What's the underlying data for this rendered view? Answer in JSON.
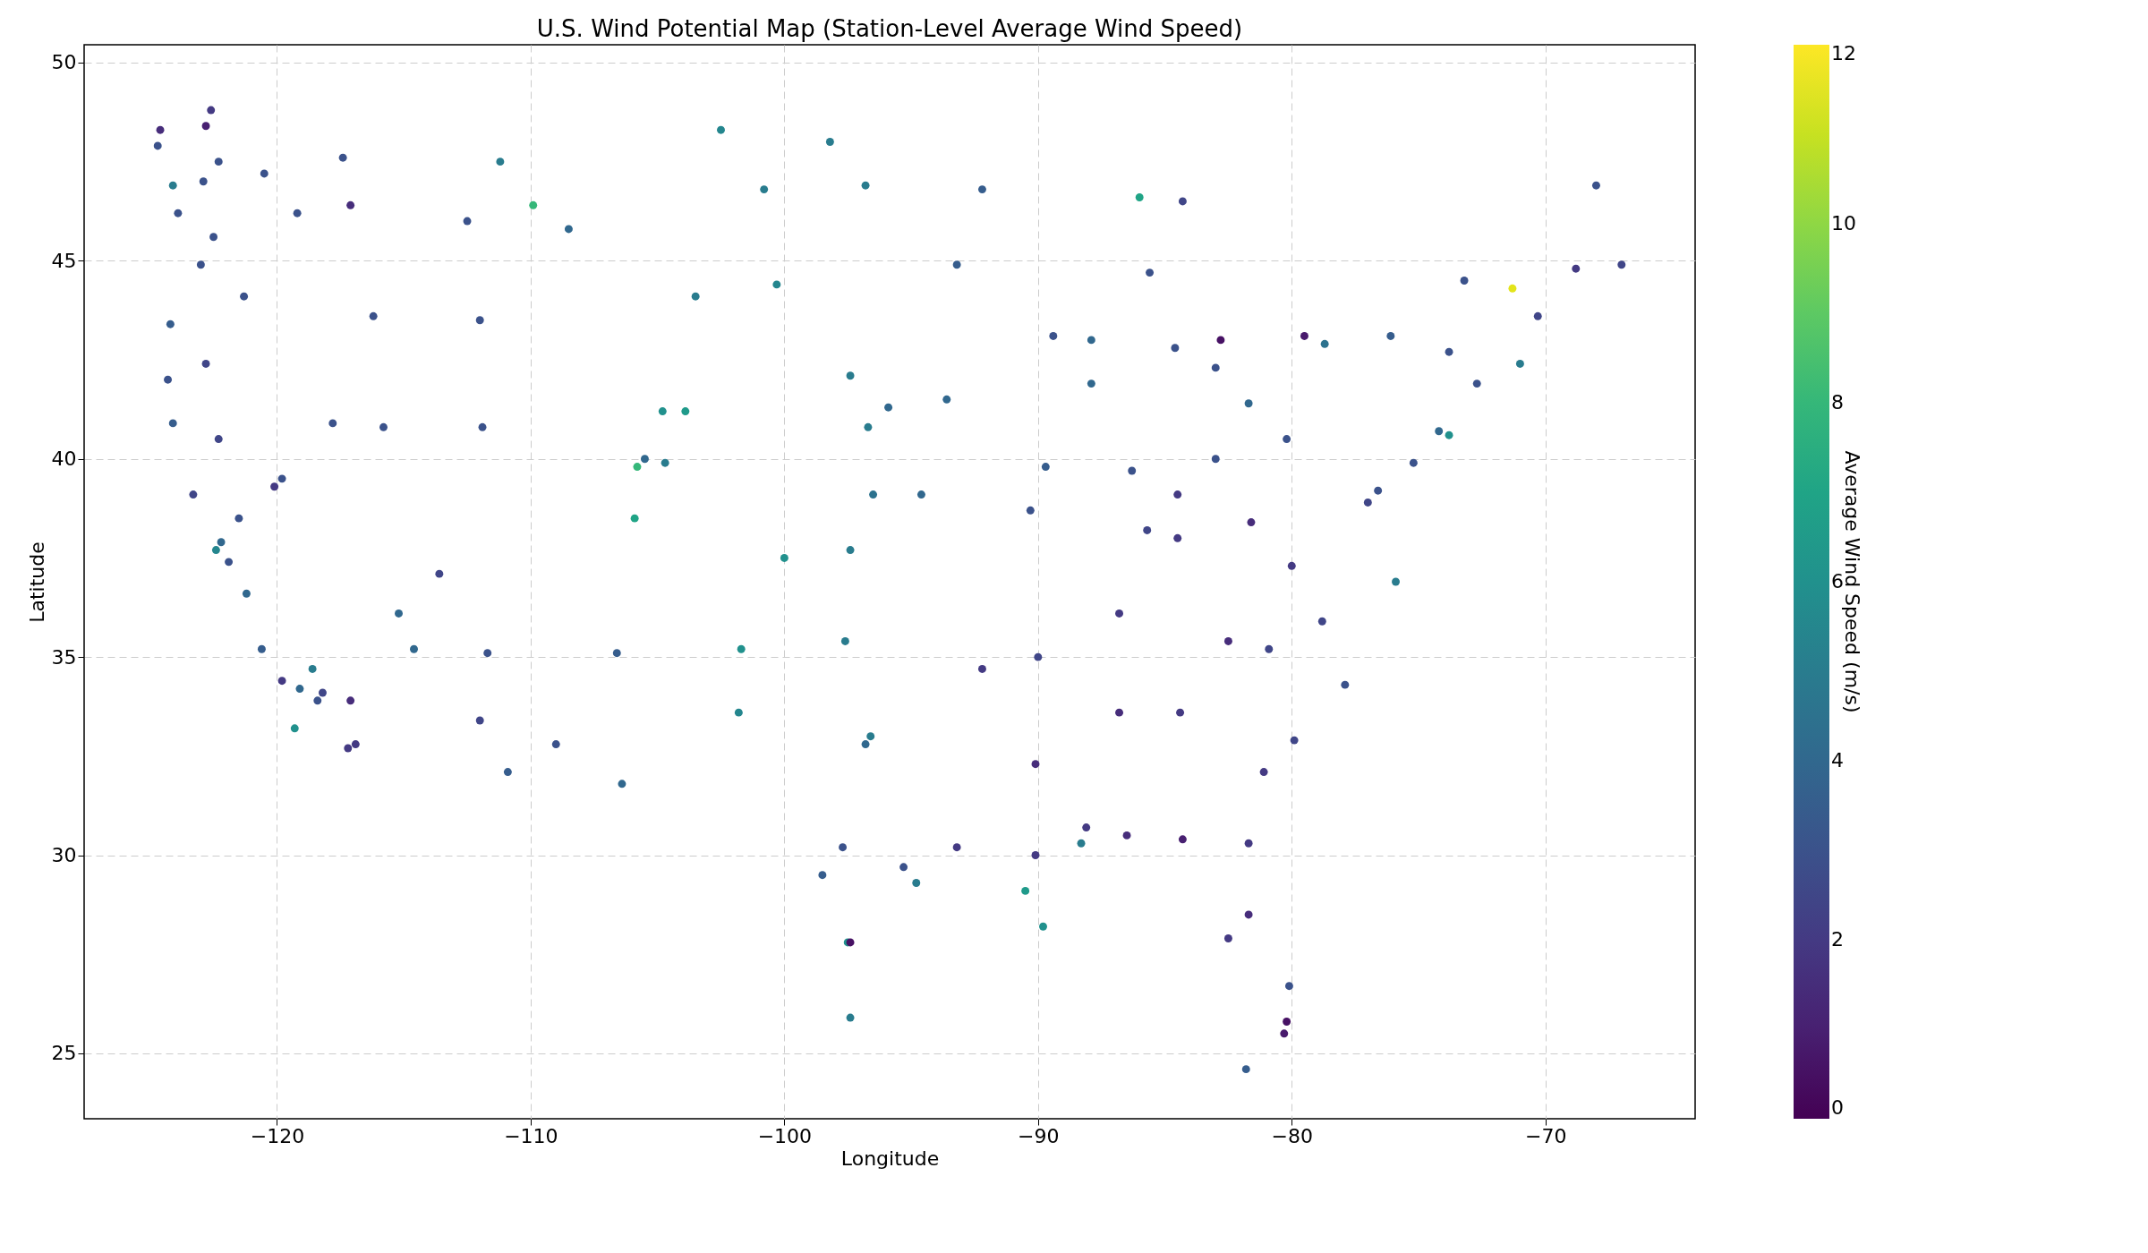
{
  "chart_data": {
    "type": "scatter",
    "title": "U.S. Wind Potential Map (Station-Level Average Wind Speed)",
    "xlabel": "Longitude",
    "ylabel": "Latitude",
    "clabel": "Average Wind Speed (m/s)",
    "marker": "circle",
    "grid": true,
    "xlim": [
      -127.6,
      -64.1
    ],
    "ylim": [
      23.35,
      50.45
    ],
    "xticks": [
      {
        "value": -120,
        "label": "−120"
      },
      {
        "value": -110,
        "label": "−110"
      },
      {
        "value": -100,
        "label": "−100"
      },
      {
        "value": -90,
        "label": "−90"
      },
      {
        "value": -80,
        "label": "−80"
      },
      {
        "value": -70,
        "label": "−70"
      }
    ],
    "yticks": [
      25,
      30,
      35,
      40,
      45,
      50
    ],
    "clim": [
      0,
      12
    ],
    "cticks": [
      0,
      2,
      4,
      6,
      8,
      10,
      12
    ],
    "x": [
      -124.6,
      -124.7,
      -124.1,
      -123.9,
      -124.2,
      -124.3,
      -124.1,
      -123.3,
      -122.4,
      -122.2,
      -121.9,
      -121.2,
      -120.6,
      -119.8,
      -118.4,
      -117.2,
      -117.1,
      -118.2,
      -119.1,
      -122.3,
      -122.6,
      -122.9,
      -122.5,
      -123.0,
      -122.8,
      -121.3,
      -122.3,
      -121.5,
      -120.1,
      -119.2,
      -117.4,
      -119.8,
      -117.8,
      -115.8,
      -115.2,
      -114.6,
      -116.2,
      -112.0,
      -111.9,
      -112.0,
      -110.9,
      -111.7,
      -113.6,
      -108.5,
      -111.2,
      -112.5,
      -109.9,
      -106.6,
      -104.7,
      -104.8,
      -105.5,
      -106.4,
      -103.5,
      -101.7,
      -101.8,
      -100.0,
      -100.8,
      -98.2,
      -96.8,
      -97.4,
      -95.9,
      -97.4,
      -97.6,
      -96.8,
      -97.7,
      -98.5,
      -95.3,
      -97.5,
      -97.4,
      -94.8,
      -93.2,
      -90.1,
      -88.1,
      -86.5,
      -84.3,
      -82.5,
      -81.7,
      -80.2,
      -80.3,
      -81.8,
      -80.1,
      -81.7,
      -84.4,
      -86.8,
      -90.1,
      -92.2,
      -90.0,
      -86.8,
      -84.5,
      -85.7,
      -89.7,
      -87.9,
      -86.3,
      -83.0,
      -84.5,
      -81.7,
      -83.0,
      -84.6,
      -85.6,
      -87.9,
      -89.4,
      -93.2,
      -92.2,
      -90.3,
      -94.6,
      -93.6,
      -96.7,
      -86.0,
      -84.3,
      -80.2,
      -77.0,
      -76.6,
      -75.2,
      -74.2,
      -73.8,
      -72.7,
      -71.0,
      -70.3,
      -68.8,
      -68.0,
      -67.0,
      -71.3,
      -73.2,
      -73.8,
      -76.1,
      -78.7,
      -75.9,
      -77.9,
      -79.9,
      -81.1,
      -80.9,
      -78.8,
      -80.0,
      -82.5,
      -81.6,
      -79.5,
      -82.8,
      -88.3,
      -89.8,
      -90.5,
      -105.9,
      -105.8,
      -103.9,
      -102.5,
      -100.3,
      -96.6,
      -96.5,
      -120.5,
      -118.6,
      -119.3,
      -116.9,
      -109.0,
      -117.1,
      -122.8,
      -97.4
    ],
    "values": [
      48.3,
      47.9,
      46.9,
      46.2,
      43.4,
      42.0,
      40.9,
      39.1,
      37.7,
      37.9,
      37.4,
      36.6,
      35.2,
      34.4,
      33.9,
      32.7,
      33.9,
      34.1,
      34.2,
      47.5,
      48.8,
      47.0,
      45.6,
      44.9,
      42.4,
      44.1,
      40.5,
      38.5,
      39.3,
      46.2,
      47.6,
      39.5,
      40.9,
      40.8,
      36.1,
      35.2,
      43.6,
      43.5,
      40.8,
      33.4,
      32.1,
      35.1,
      37.1,
      45.8,
      47.5,
      46.0,
      46.4,
      35.1,
      39.9,
      41.2,
      40.0,
      31.8,
      44.1,
      35.2,
      33.6,
      37.5,
      46.8,
      48.0,
      46.9,
      42.1,
      41.3,
      37.7,
      35.4,
      32.8,
      30.2,
      29.5,
      29.7,
      27.8,
      25.9,
      29.3,
      30.2,
      30.0,
      30.7,
      30.5,
      30.4,
      27.9,
      28.5,
      25.8,
      25.5,
      24.6,
      26.7,
      30.3,
      33.6,
      33.6,
      32.3,
      34.7,
      35.0,
      36.1,
      38.0,
      38.2,
      39.8,
      41.9,
      39.7,
      40.0,
      39.1,
      41.4,
      42.3,
      42.8,
      44.7,
      43.0,
      43.1,
      44.9,
      46.8,
      38.7,
      39.1,
      41.5,
      40.8,
      46.6,
      46.5,
      40.5,
      38.9,
      39.2,
      39.9,
      40.7,
      40.6,
      41.9,
      42.4,
      43.6,
      44.8,
      46.9,
      44.9,
      44.3,
      44.5,
      42.7,
      43.1,
      42.9,
      36.9,
      34.3,
      32.9,
      32.1,
      35.2,
      35.9,
      37.3,
      35.4,
      38.4,
      43.1,
      43.0,
      30.3,
      28.2,
      29.1,
      38.5,
      39.8,
      41.2,
      48.3,
      44.4,
      33.0,
      39.1,
      47.2,
      34.7,
      33.2,
      32.8,
      32.8,
      46.4,
      48.4,
      27.8
    ],
    "cvalues": [
      1.5,
      3,
      5,
      3,
      3.5,
      3,
      3.5,
      2.5,
      5.5,
      4,
      3,
      4,
      3.5,
      2,
      3,
      2,
      1.5,
      2.5,
      4,
      3,
      2,
      3,
      3,
      3,
      2.5,
      3,
      2.5,
      3,
      2,
      3,
      3,
      3,
      3,
      3,
      4,
      4,
      3,
      3,
      3,
      2.5,
      3.5,
      3,
      2.5,
      4,
      5,
      3,
      8,
      3.5,
      5,
      6,
      4,
      4,
      5,
      6,
      5.5,
      6,
      5,
      5,
      5,
      5,
      4,
      5,
      5,
      4,
      3,
      3.5,
      3,
      6,
      5,
      5,
      2,
      2,
      2,
      1.5,
      1,
      2,
      1.5,
      0.5,
      0.8,
      3.5,
      3,
      2,
      2,
      1.5,
      1.5,
      2,
      2.5,
      2,
      2,
      2.5,
      3.5,
      4,
      3,
      3,
      2,
      4,
      3,
      3,
      3,
      4,
      3,
      3.5,
      3.5,
      3,
      4,
      4,
      5,
      7,
      2.5,
      3,
      2.5,
      3,
      3,
      4,
      6,
      3,
      5,
      2.5,
      2,
      3,
      2.5,
      11.5,
      3,
      3,
      3.5,
      4.5,
      5,
      3,
      2.5,
      2,
      2.5,
      2.5,
      2,
      1.5,
      1.5,
      0.8,
      0.5,
      5,
      6,
      6.5,
      7,
      8,
      6.5,
      5.5,
      5.5,
      5,
      4.5,
      3,
      5,
      6,
      2,
      3,
      1.5,
      1,
      0.5
    ]
  }
}
